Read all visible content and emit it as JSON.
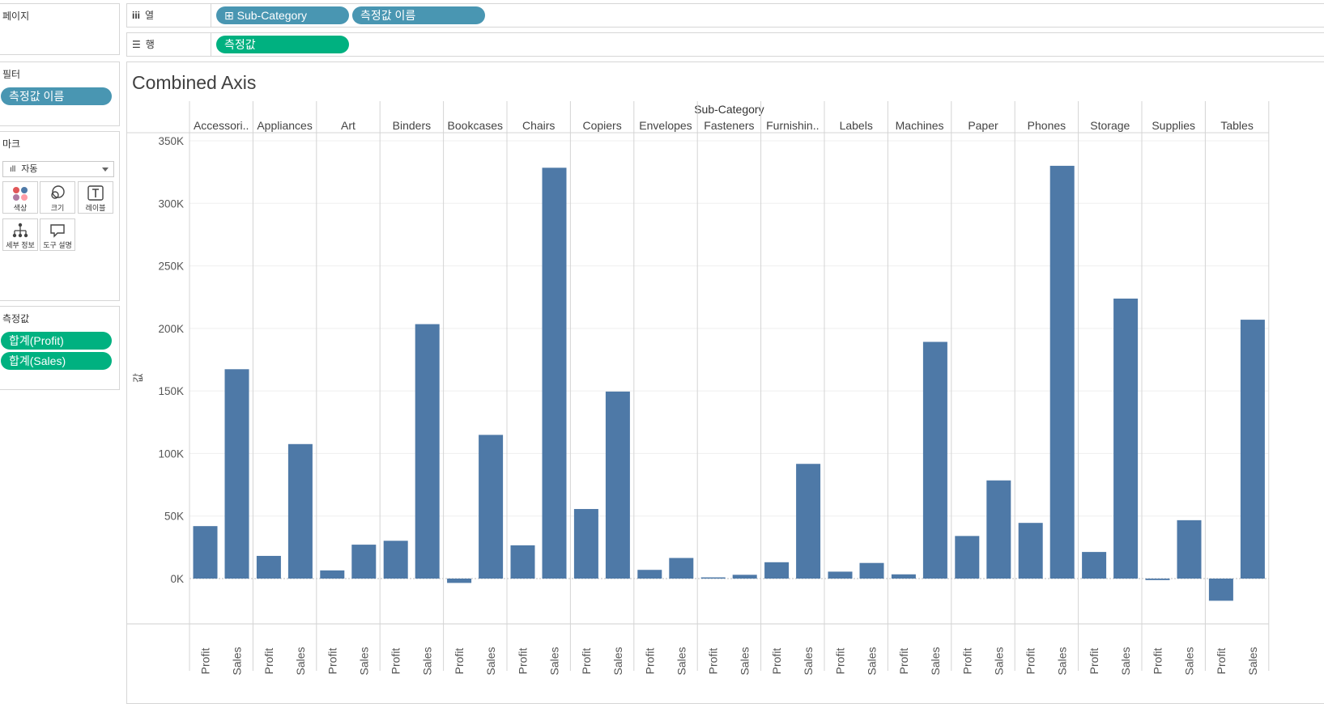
{
  "panels": {
    "pages": {
      "title": "페이지"
    },
    "filters": {
      "title": "필터",
      "pill": "측정값 이름"
    },
    "marks": {
      "title": "마크",
      "dropdown": "자동",
      "buttons": {
        "color": "색상",
        "size": "크기",
        "label": "레이블",
        "detail": "세부 정보",
        "tooltip": "도구 설명"
      }
    },
    "measures": {
      "title": "측정값",
      "items": [
        "합계(Profit)",
        "합계(Sales)"
      ]
    }
  },
  "shelves": {
    "columns": {
      "label": "열",
      "pills": [
        "⊞ Sub-Category",
        "측정값 이름"
      ]
    },
    "rows": {
      "label": "행",
      "pills": [
        "측정값"
      ]
    }
  },
  "view": {
    "title": "Combined Axis"
  },
  "colors": {
    "bar": "#4e79a7",
    "pill_blue": "#4996b2",
    "pill_green": "#00b180"
  },
  "chart_data": {
    "type": "bar",
    "header": "Sub-Category",
    "ylabel": "값",
    "ylim": [
      -36000,
      355000
    ],
    "yticks": [
      0,
      50000,
      100000,
      150000,
      200000,
      250000,
      300000,
      350000
    ],
    "ytick_labels": [
      "0K",
      "50K",
      "100K",
      "150K",
      "200K",
      "250K",
      "300K",
      "350K"
    ],
    "measures": [
      "Profit",
      "Sales"
    ],
    "categories": [
      "Accessori..",
      "Appliances",
      "Art",
      "Binders",
      "Bookcases",
      "Chairs",
      "Copiers",
      "Envelopes",
      "Fasteners",
      "Furnishin..",
      "Labels",
      "Machines",
      "Paper",
      "Phones",
      "Storage",
      "Supplies",
      "Tables"
    ],
    "series": [
      {
        "name": "Profit",
        "values": [
          41937,
          18138,
          6528,
          30222,
          -3473,
          26590,
          55618,
          6964,
          950,
          13059,
          5546,
          3385,
          34054,
          44516,
          21279,
          -1189,
          -17725
        ]
      },
      {
        "name": "Sales",
        "values": [
          167380,
          107532,
          27119,
          203413,
          114880,
          328449,
          149528,
          16476,
          3024,
          91705,
          12486,
          189239,
          78479,
          330007,
          223844,
          46674,
          206966
        ]
      }
    ]
  }
}
